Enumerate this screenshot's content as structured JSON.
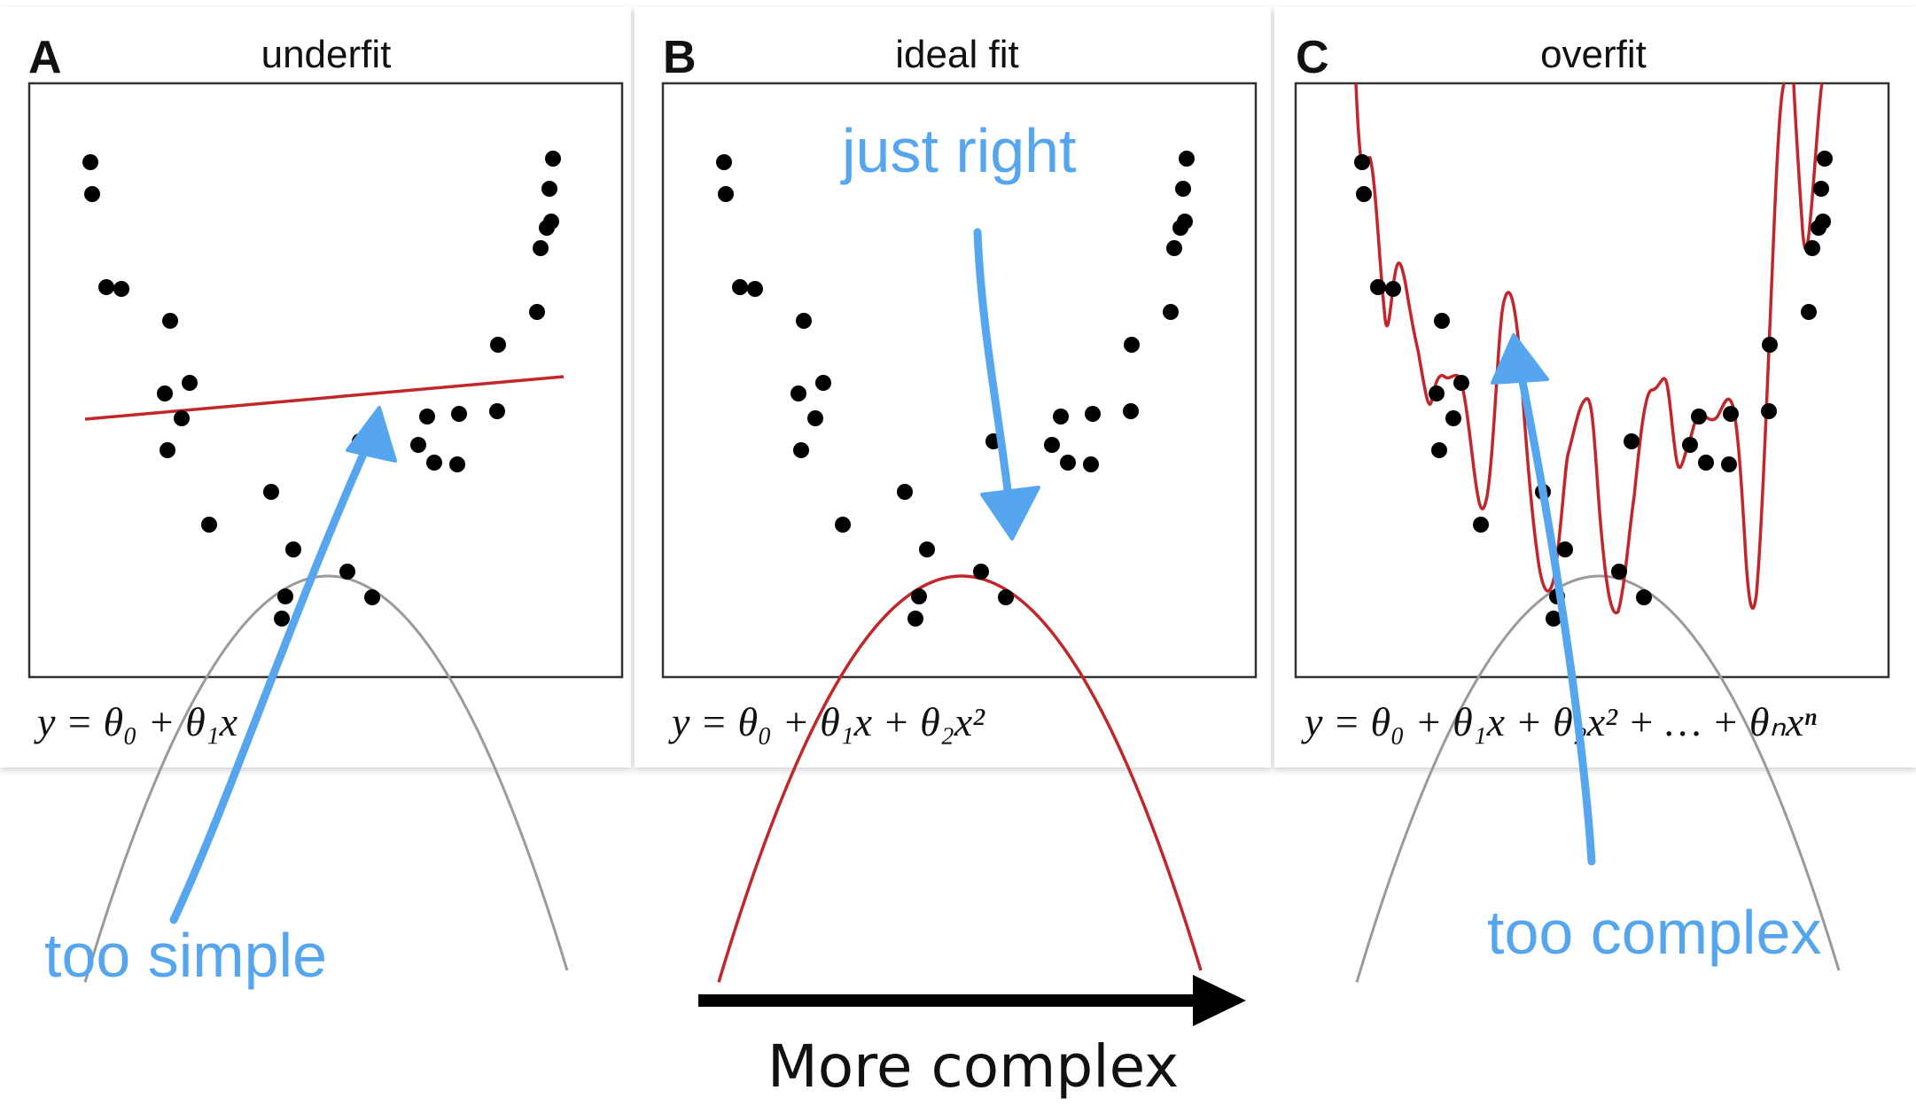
{
  "panels": [
    {
      "letter": "A",
      "title": "underfit",
      "equation": "y = θ₀ + θ₁x",
      "fit": "linear"
    },
    {
      "letter": "B",
      "title": "ideal fit",
      "equation": "y = θ₀ + θ₁x + θ₂x²",
      "fit": "quadratic"
    },
    {
      "letter": "C",
      "title": "overfit",
      "equation": "y = θ₀ + θ₁x + θ₂x² + … + θₙxⁿ",
      "fit": "high-order polynomial"
    }
  ],
  "annotations": {
    "too_simple": "too simple",
    "just_right": "just right",
    "too_complex": "too complex"
  },
  "complexity_axis": {
    "label": "More complex"
  },
  "colors": {
    "fit_line": "#c0262a",
    "true_curve": "#9a9a9a",
    "annotation": "#55a5ef",
    "points": "#000000"
  }
}
